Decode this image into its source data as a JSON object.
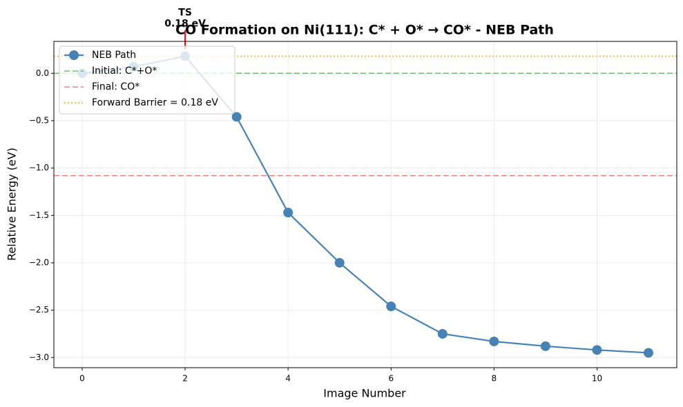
{
  "chart_data": {
    "type": "line",
    "title": "CO Formation on Ni(111): C* + O* → CO* - NEB Path",
    "x_label": "Image Number",
    "y_label": "Relative Energy (eV)",
    "x": [
      0,
      1,
      2,
      3,
      4,
      5,
      6,
      7,
      8,
      9,
      10,
      11
    ],
    "series": [
      {
        "name": "NEB Path",
        "color": "#4682b4",
        "values": [
          0.0,
          0.07,
          0.18,
          -0.46,
          -1.47,
          -2.0,
          -2.46,
          -2.75,
          -2.83,
          -2.88,
          -2.92,
          -2.95
        ]
      }
    ],
    "reference_lines": [
      {
        "name": "Initial: C*+O*",
        "value": 0.0,
        "color": "#6dbd6d",
        "style": "dashed"
      },
      {
        "name": "Final: CO*",
        "value": -1.08,
        "color": "#f08080",
        "style": "dashed"
      },
      {
        "name": "Forward Barrier = 0.18 eV",
        "value": 0.18,
        "color": "#fbbd4a",
        "style": "dotted"
      }
    ],
    "annotation": {
      "lines": [
        "TS",
        "0.18 eV"
      ],
      "x": 2,
      "y": 0.18,
      "color": "#ff0000"
    },
    "xlim": [
      -0.55,
      11.55
    ],
    "ylim": [
      -3.107,
      0.337
    ],
    "xticks": [
      0,
      2,
      4,
      6,
      8,
      10
    ],
    "yticks": [
      {
        "value": 0,
        "label": "0.0"
      },
      {
        "value": -0.5,
        "label": "−0.5"
      },
      {
        "value": -1,
        "label": "−1.0"
      },
      {
        "value": -1.5,
        "label": "−1.5"
      },
      {
        "value": -2,
        "label": "−2.0"
      },
      {
        "value": -2.5,
        "label": "−2.5"
      },
      {
        "value": -3,
        "label": "−3.0"
      }
    ],
    "grid": true,
    "legend": "upper left"
  }
}
